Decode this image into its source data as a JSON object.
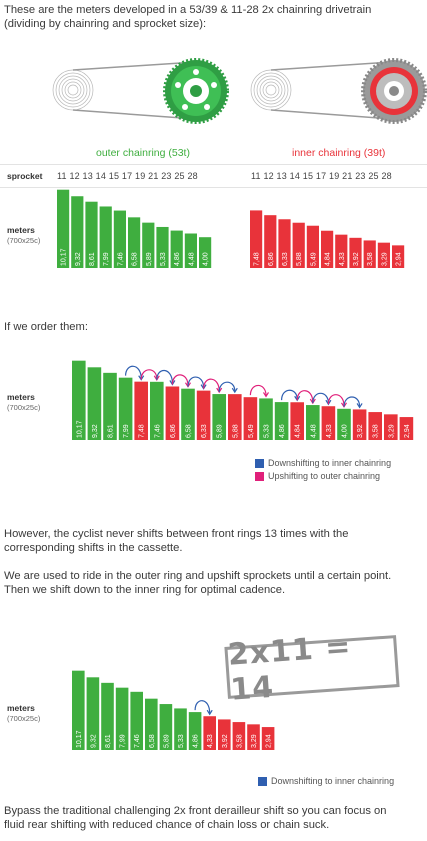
{
  "intro": "These are the meters developed in a 53/39 & 11-28 2x chainring drivetrain",
  "intro2": "(dividing by chainring and sprocket size):",
  "outer_title": "outer chainring (53t)",
  "inner_title": "inner chainring (39t)",
  "sprocket_label": "sprocket",
  "sprockets_text": "11 12 13 14 15 17 19 21 23 25 28",
  "meters_label": "meters",
  "tire_label": "(700x25c)",
  "order_text": "If we order them:",
  "legend_down": "Downshifting to inner chainring",
  "legend_up": "Upshifting to outer chainring",
  "p1": "However, the cyclist never shifts between front rings 13 times with the",
  "p2": "corresponding shifts in the cassette.",
  "p3": "We are used to ride in the outer ring and upshift sprockets until a certain point.",
  "p4": "Then we shift down to the inner ring for optimal cadence.",
  "stamp": "2x11 = 14",
  "legend_down2": "Downshifting to inner chainring",
  "p5": "Bypass the traditional challenging 2x front derailleur shift so you can focus on",
  "p6": "fluid rear shifting with reduced chance of chain loss or chain suck.",
  "colors": {
    "green": "#3fae3f",
    "red": "#e8333a",
    "blue": "#2f5fb0",
    "pink": "#e0207a"
  },
  "chart_data": [
    {
      "type": "bar",
      "x": [
        "11",
        "12",
        "13",
        "14",
        "15",
        "17",
        "19",
        "21",
        "23",
        "25",
        "28"
      ],
      "series": [
        {
          "name": "outer chainring (53t)",
          "values": [
            10.17,
            9.32,
            8.61,
            7.99,
            7.46,
            6.58,
            5.89,
            5.33,
            4.86,
            4.48,
            4.0
          ],
          "labels": [
            "10,17",
            "9,32",
            "8,61",
            "7,99",
            "7,46",
            "6,58",
            "5,89",
            "5,33",
            "4,86",
            "4,48",
            "4,00"
          ]
        },
        {
          "name": "inner chainring (39t)",
          "values": [
            7.48,
            6.86,
            6.33,
            5.88,
            5.49,
            4.84,
            4.33,
            3.92,
            3.58,
            3.29,
            2.94
          ],
          "labels": [
            "7,48",
            "6,86",
            "6,33",
            "5,88",
            "5,49",
            "4,84",
            "4,33",
            "3,92",
            "3,58",
            "3,29",
            "2,94"
          ]
        }
      ],
      "ylabel": "meters"
    },
    {
      "type": "bar",
      "values": [
        10.17,
        9.32,
        8.61,
        7.99,
        7.48,
        7.46,
        6.86,
        6.58,
        6.33,
        5.89,
        5.88,
        5.49,
        5.33,
        4.86,
        4.84,
        4.48,
        4.33,
        4.0,
        3.92,
        3.58,
        3.29,
        2.94
      ],
      "labels": [
        "10,17",
        "9,32",
        "8,61",
        "7,99",
        "7,48",
        "7,46",
        "6,86",
        "6,58",
        "6,33",
        "5,89",
        "5,88",
        "5,49",
        "5,33",
        "4,86",
        "4,84",
        "4,48",
        "4,33",
        "4,00",
        "3,92",
        "3,58",
        "3,29",
        "2,94"
      ],
      "ring": [
        "outer",
        "outer",
        "outer",
        "outer",
        "inner",
        "outer",
        "inner",
        "outer",
        "inner",
        "outer",
        "inner",
        "inner",
        "outer",
        "outer",
        "inner",
        "outer",
        "inner",
        "outer",
        "inner",
        "inner",
        "inner",
        "inner"
      ],
      "ylabel": "meters"
    },
    {
      "type": "bar",
      "values": [
        10.17,
        9.32,
        8.61,
        7.99,
        7.46,
        6.58,
        5.89,
        5.33,
        4.86,
        4.33,
        3.92,
        3.58,
        3.29,
        2.94
      ],
      "labels": [
        "10,17",
        "9,32",
        "8,61",
        "7,99",
        "7,46",
        "6,58",
        "5,89",
        "5,33",
        "4,86",
        "4,33",
        "3,92",
        "3,58",
        "3,29",
        "2,94"
      ],
      "ring": [
        "outer",
        "outer",
        "outer",
        "outer",
        "outer",
        "outer",
        "outer",
        "outer",
        "outer",
        "inner",
        "inner",
        "inner",
        "inner",
        "inner"
      ],
      "ylabel": "meters"
    }
  ]
}
